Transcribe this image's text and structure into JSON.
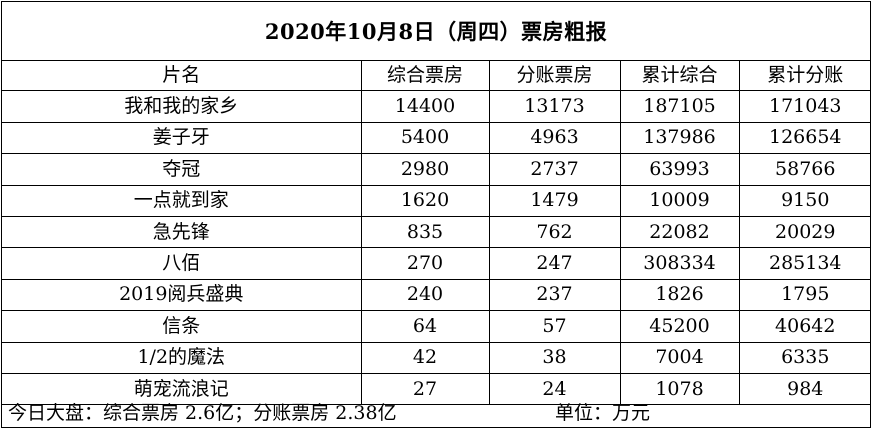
{
  "title": "2020年10月8日（周四）票房粗报",
  "table": {
    "headers": [
      "片名",
      "综合票房",
      "分账票房",
      "累计综合",
      "累计分账"
    ],
    "rows": [
      [
        "我和我的家乡",
        "14400",
        "13173",
        "187105",
        "171043"
      ],
      [
        "姜子牙",
        "5400",
        "4963",
        "137986",
        "126654"
      ],
      [
        "夺冠",
        "2980",
        "2737",
        "63993",
        "58766"
      ],
      [
        "一点就到家",
        "1620",
        "1479",
        "10009",
        "9150"
      ],
      [
        "急先锋",
        "835",
        "762",
        "22082",
        "20029"
      ],
      [
        "八佰",
        "270",
        "247",
        "308334",
        "285134"
      ],
      [
        "2019阅兵盛典",
        "240",
        "237",
        "1826",
        "1795"
      ],
      [
        "信条",
        "64",
        "57",
        "45200",
        "40642"
      ],
      [
        "1/2的魔法",
        "42",
        "38",
        "7004",
        "6335"
      ],
      [
        "萌宠流浪记",
        "27",
        "24",
        "1078",
        "984"
      ]
    ]
  },
  "footer": {
    "summary": "今日大盘：综合票房 2.6亿；分账票房 2.38亿",
    "unit": "单位：万元"
  }
}
